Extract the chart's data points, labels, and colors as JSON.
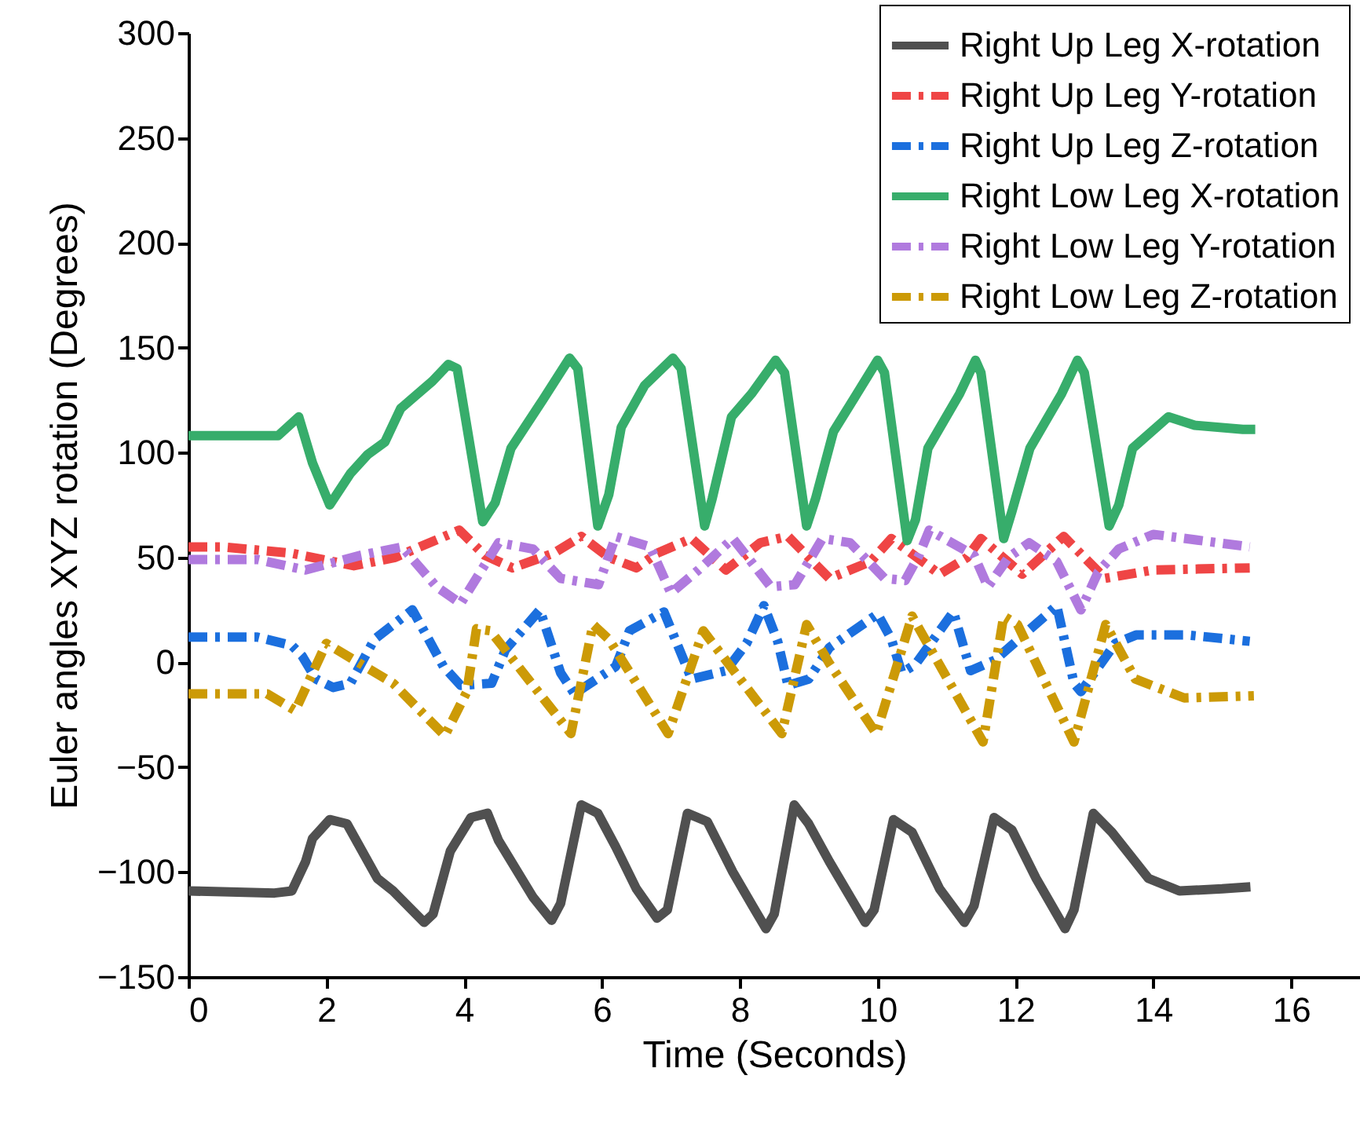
{
  "chart_data": {
    "type": "line",
    "xlabel": "Time (Seconds)",
    "ylabel": "Euler angles XYZ rotation (Degrees)",
    "xlim": [
      0,
      17
    ],
    "xticks": [
      0,
      2,
      4,
      6,
      8,
      10,
      12,
      14,
      16
    ],
    "ylim": [
      -150,
      300
    ],
    "yticks": [
      -150,
      -100,
      -50,
      0,
      50,
      100,
      150,
      200,
      250,
      300
    ],
    "legend": "top right",
    "series": [
      {
        "name": "Right Up Leg X-rotation",
        "color": "#505050",
        "line_style": "solid",
        "x": [
          0,
          1.25,
          1.5,
          1.7,
          1.8,
          2.05,
          2.3,
          2.74,
          2.97,
          3.42,
          3.55,
          3.8,
          4.1,
          4.34,
          4.5,
          5.0,
          5.27,
          5.4,
          5.7,
          5.94,
          6.2,
          6.5,
          6.8,
          6.95,
          7.24,
          7.53,
          7.9,
          8.2,
          8.38,
          8.5,
          8.79,
          9.0,
          9.3,
          9.82,
          9.95,
          10.23,
          10.5,
          10.9,
          11.26,
          11.4,
          11.69,
          11.95,
          12.3,
          12.72,
          12.85,
          13.13,
          13.4,
          13.93,
          14.38,
          15.0,
          15.41
        ],
        "values": [
          -109,
          -110,
          -109,
          -95,
          -84,
          -75,
          -77,
          -103,
          -109,
          -124,
          -120,
          -90,
          -74,
          -72,
          -85,
          -112,
          -123,
          -115,
          -68,
          -72,
          -88,
          -108,
          -122,
          -118,
          -72,
          -76,
          -100,
          -117,
          -127,
          -120,
          -68,
          -77,
          -95,
          -124,
          -118,
          -75,
          -81,
          -108,
          -124,
          -116,
          -74,
          -80,
          -103,
          -127,
          -118,
          -72,
          -81,
          -103,
          -109,
          -108,
          -107
        ]
      },
      {
        "name": "Right Up Leg Y-rotation",
        "color": "#ef4545",
        "line_style": "dashed",
        "x": [
          0,
          0.5,
          1.5,
          2.4,
          3.0,
          3.93,
          4.3,
          4.7,
          5.3,
          5.7,
          6.1,
          6.5,
          6.8,
          7.3,
          7.8,
          8.3,
          8.7,
          9.3,
          9.9,
          10.2,
          10.9,
          11.3,
          11.5,
          12.1,
          12.3,
          12.7,
          13.3,
          14.0,
          15.4
        ],
        "values": [
          55,
          55,
          52,
          46,
          50,
          63,
          51,
          45,
          52,
          60,
          50,
          45,
          52,
          59,
          44,
          57,
          60,
          40,
          48,
          59,
          42,
          50,
          59,
          42,
          48,
          60,
          40,
          44,
          45
        ]
      },
      {
        "name": "Right Up Leg Z-rotation",
        "color": "#1b6fde",
        "line_style": "dashed",
        "x": [
          0,
          1.0,
          1.5,
          1.65,
          1.85,
          2.1,
          2.35,
          2.7,
          3.25,
          3.7,
          3.95,
          4.4,
          4.6,
          5.1,
          5.4,
          5.6,
          6.2,
          6.4,
          6.9,
          7.3,
          7.8,
          8.1,
          8.35,
          8.55,
          8.7,
          9.0,
          9.3,
          10.0,
          10.2,
          10.35,
          10.55,
          11.1,
          11.35,
          11.7,
          12.6,
          12.85,
          12.95,
          13.45,
          13.75,
          14.5,
          15.4
        ],
        "values": [
          12,
          12,
          8,
          3,
          -8,
          -12,
          -10,
          11,
          25,
          -2,
          -11,
          -10,
          6,
          25,
          -5,
          -15,
          -2,
          15,
          24,
          -8,
          -4,
          9,
          27,
          10,
          -11,
          -8,
          7,
          23,
          11,
          -5,
          -1,
          24,
          -4,
          1,
          27,
          -10,
          -14,
          9,
          13,
          13,
          10
        ]
      },
      {
        "name": "Right Low Leg X-rotation",
        "color": "#37ad6b",
        "line_style": "solid",
        "x": [
          0,
          1.3,
          1.6,
          1.8,
          2.05,
          2.35,
          2.6,
          2.85,
          3.08,
          3.54,
          3.77,
          3.9,
          4.27,
          4.45,
          4.68,
          5.14,
          5.53,
          5.65,
          5.94,
          6.1,
          6.28,
          6.62,
          7.03,
          7.15,
          7.49,
          7.6,
          7.88,
          8.17,
          8.52,
          8.65,
          8.97,
          9.1,
          9.36,
          9.7,
          10.0,
          10.1,
          10.43,
          10.55,
          10.73,
          11.19,
          11.42,
          11.5,
          11.83,
          11.95,
          12.21,
          12.67,
          12.9,
          13.0,
          13.36,
          13.5,
          13.7,
          14.22,
          14.6,
          15.3,
          15.48
        ],
        "values": [
          108,
          108,
          117,
          95,
          75,
          90,
          99,
          105,
          121,
          134,
          142,
          140,
          67,
          76,
          102,
          125,
          145,
          140,
          65,
          80,
          112,
          132,
          145,
          140,
          65,
          78,
          117,
          128,
          144,
          138,
          65,
          78,
          110,
          128,
          144,
          138,
          58,
          68,
          102,
          128,
          144,
          138,
          59,
          72,
          102,
          128,
          144,
          138,
          65,
          75,
          102,
          117,
          113,
          111,
          111
        ]
      },
      {
        "name": "Right Low Leg Y-rotation",
        "color": "#b07ade",
        "line_style": "dashed",
        "x": [
          0,
          1.0,
          1.7,
          2.5,
          3.1,
          3.6,
          3.95,
          4.5,
          5.0,
          5.4,
          5.95,
          6.2,
          6.7,
          7.0,
          7.4,
          7.9,
          8.45,
          8.8,
          9.2,
          9.6,
          10.1,
          10.4,
          10.6,
          10.75,
          11.4,
          11.6,
          11.9,
          12.2,
          12.6,
          12.95,
          13.2,
          13.5,
          14.0,
          15.4
        ],
        "values": [
          49,
          49,
          44,
          51,
          55,
          36,
          28,
          57,
          54,
          40,
          37,
          60,
          55,
          33,
          44,
          59,
          36,
          37,
          59,
          57,
          40,
          39,
          51,
          63,
          51,
          36,
          50,
          57,
          48,
          25,
          43,
          54,
          61,
          55
        ]
      },
      {
        "name": "Right Low Leg Z-rotation",
        "color": "#cc9a06",
        "line_style": "dashed",
        "x": [
          0,
          1.14,
          1.55,
          2.0,
          2.97,
          3.72,
          4.04,
          4.18,
          4.38,
          5.55,
          5.87,
          6.1,
          6.96,
          7.47,
          8.61,
          8.97,
          9.29,
          9.98,
          10.5,
          11.53,
          11.83,
          12.03,
          12.85,
          13.31,
          13.74,
          14.45,
          15.46
        ],
        "values": [
          -15,
          -15,
          -23,
          9,
          -10,
          -35,
          -14,
          16,
          15,
          -34,
          18,
          11,
          -34,
          15,
          -34,
          18,
          0,
          -34,
          22,
          -38,
          22,
          18,
          -38,
          18,
          -8,
          -17,
          -16
        ]
      }
    ]
  }
}
